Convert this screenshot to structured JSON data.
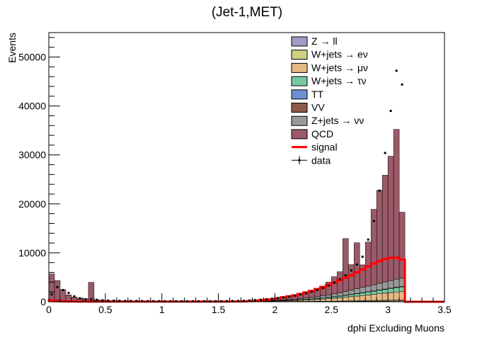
{
  "chart_data": {
    "type": "bar",
    "title": "(Jet-1,MET)",
    "xlabel": "dphi Excluding Muons",
    "ylabel": "Events",
    "xlim": [
      0,
      3.5
    ],
    "ylim": [
      0,
      55000
    ],
    "x_ticks": [
      "0",
      "0.5",
      "1",
      "1.5",
      "2",
      "2.5",
      "3",
      "3.5"
    ],
    "y_ticks": [
      "0",
      "10000",
      "20000",
      "30000",
      "40000",
      "50000"
    ],
    "bin_width": 0.05,
    "legend_position": "top-right",
    "legend": [
      {
        "label": "Z → ll",
        "kind": "fill",
        "color": "#a09cc7"
      },
      {
        "label": "W+jets → eν",
        "kind": "fill",
        "color": "#cfcf86"
      },
      {
        "label": "W+jets → μν",
        "kind": "fill",
        "color": "#e5b985"
      },
      {
        "label": "W+jets → τν",
        "kind": "fill",
        "color": "#78c8a0"
      },
      {
        "label": "TT",
        "kind": "fill",
        "color": "#6f8fd0"
      },
      {
        "label": "VV",
        "kind": "fill",
        "color": "#8b5a4a"
      },
      {
        "label": "Z+jets → νν",
        "kind": "fill",
        "color": "#999999"
      },
      {
        "label": "QCD",
        "kind": "fill",
        "color": "#9a5a68"
      },
      {
        "label": "signal",
        "kind": "line",
        "color": "#ff0000"
      },
      {
        "label": "data",
        "kind": "marker",
        "color": "#000000"
      }
    ],
    "x": [
      0.025,
      0.075,
      0.125,
      0.175,
      0.225,
      0.275,
      0.325,
      0.375,
      0.425,
      0.475,
      0.525,
      0.575,
      0.625,
      0.675,
      0.725,
      0.775,
      0.825,
      0.875,
      0.925,
      0.975,
      1.025,
      1.075,
      1.125,
      1.175,
      1.225,
      1.275,
      1.325,
      1.375,
      1.425,
      1.475,
      1.525,
      1.575,
      1.625,
      1.675,
      1.725,
      1.775,
      1.825,
      1.875,
      1.925,
      1.975,
      2.025,
      2.075,
      2.125,
      2.175,
      2.225,
      2.275,
      2.325,
      2.375,
      2.425,
      2.475,
      2.525,
      2.575,
      2.625,
      2.675,
      2.725,
      2.775,
      2.825,
      2.875,
      2.925,
      2.975,
      3.025,
      3.075,
      3.125
    ],
    "series": [
      {
        "name": "Z → ll",
        "values": [
          60,
          50,
          40,
          30,
          25,
          20,
          18,
          25,
          15,
          10,
          8,
          8,
          8,
          8,
          8,
          8,
          8,
          8,
          8,
          8,
          8,
          8,
          8,
          8,
          8,
          8,
          8,
          8,
          8,
          8,
          8,
          8,
          8,
          10,
          10,
          12,
          14,
          16,
          18,
          20,
          22,
          25,
          28,
          32,
          36,
          40,
          45,
          50,
          55,
          60,
          65,
          70,
          80,
          90,
          100,
          110,
          120,
          130,
          140,
          150,
          160,
          170,
          180
        ]
      },
      {
        "name": "W+jets → eν",
        "values": [
          60,
          50,
          40,
          30,
          25,
          20,
          18,
          25,
          15,
          10,
          8,
          8,
          8,
          8,
          8,
          8,
          8,
          8,
          8,
          8,
          8,
          8,
          8,
          8,
          8,
          8,
          8,
          8,
          8,
          8,
          8,
          8,
          8,
          10,
          10,
          12,
          14,
          16,
          18,
          20,
          22,
          25,
          28,
          32,
          36,
          40,
          45,
          50,
          55,
          60,
          65,
          70,
          80,
          90,
          100,
          110,
          120,
          130,
          140,
          150,
          160,
          170,
          180
        ]
      },
      {
        "name": "W+jets → μν",
        "values": [
          100,
          90,
          70,
          50,
          40,
          30,
          25,
          40,
          20,
          15,
          10,
          10,
          10,
          10,
          10,
          10,
          10,
          10,
          10,
          10,
          10,
          10,
          10,
          10,
          10,
          10,
          10,
          10,
          10,
          10,
          12,
          14,
          16,
          20,
          25,
          30,
          40,
          50,
          65,
          80,
          100,
          120,
          150,
          180,
          220,
          260,
          300,
          350,
          420,
          500,
          580,
          660,
          760,
          860,
          960,
          1060,
          1150,
          1250,
          1350,
          1450,
          1550,
          1650,
          1700
        ]
      },
      {
        "name": "W+jets → τν",
        "values": [
          60,
          50,
          40,
          30,
          25,
          20,
          18,
          25,
          15,
          10,
          8,
          8,
          8,
          8,
          8,
          8,
          8,
          8,
          8,
          8,
          8,
          8,
          8,
          8,
          8,
          8,
          8,
          8,
          8,
          8,
          8,
          10,
          12,
          14,
          16,
          20,
          25,
          30,
          40,
          50,
          60,
          70,
          85,
          100,
          120,
          140,
          160,
          190,
          220,
          250,
          290,
          330,
          380,
          430,
          480,
          540,
          600,
          660,
          720,
          780,
          840,
          900,
          960
        ]
      },
      {
        "name": "TT",
        "values": [
          10,
          10,
          8,
          6,
          5,
          4,
          4,
          5,
          3,
          2,
          2,
          2,
          2,
          2,
          2,
          2,
          2,
          2,
          2,
          2,
          2,
          2,
          2,
          2,
          2,
          2,
          2,
          2,
          2,
          2,
          2,
          2,
          2,
          2,
          3,
          3,
          4,
          4,
          5,
          6,
          6,
          7,
          8,
          9,
          10,
          11,
          12,
          13,
          15,
          16,
          18,
          20,
          22,
          24,
          26,
          28,
          30,
          32,
          34,
          36,
          38,
          40,
          42
        ]
      },
      {
        "name": "VV",
        "values": [
          10,
          10,
          8,
          6,
          5,
          4,
          4,
          5,
          3,
          2,
          2,
          2,
          2,
          2,
          2,
          2,
          2,
          2,
          2,
          2,
          2,
          2,
          2,
          2,
          2,
          2,
          2,
          2,
          2,
          2,
          2,
          2,
          2,
          2,
          3,
          3,
          4,
          4,
          5,
          6,
          6,
          7,
          8,
          9,
          10,
          11,
          12,
          13,
          15,
          16,
          18,
          20,
          22,
          24,
          26,
          28,
          30,
          32,
          34,
          36,
          38,
          40,
          42
        ]
      },
      {
        "name": "Z+jets → νν",
        "values": [
          100,
          80,
          70,
          50,
          40,
          30,
          25,
          40,
          20,
          15,
          10,
          10,
          10,
          10,
          10,
          10,
          10,
          10,
          10,
          10,
          10,
          10,
          10,
          10,
          10,
          10,
          10,
          10,
          10,
          10,
          12,
          14,
          16,
          20,
          25,
          30,
          40,
          50,
          65,
          80,
          100,
          120,
          150,
          180,
          220,
          260,
          300,
          350,
          420,
          500,
          580,
          660,
          760,
          860,
          960,
          1060,
          1150,
          1250,
          1350,
          1450,
          1550,
          1650,
          1700
        ]
      },
      {
        "name": "QCD",
        "values": [
          5300,
          4000,
          2200,
          1200,
          800,
          600,
          500,
          3800,
          300,
          250,
          200,
          180,
          160,
          150,
          140,
          130,
          120,
          110,
          100,
          100,
          90,
          90,
          80,
          80,
          80,
          80,
          80,
          80,
          80,
          80,
          80,
          90,
          100,
          120,
          150,
          200,
          250,
          300,
          350,
          400,
          500,
          600,
          700,
          850,
          1000,
          1200,
          1400,
          1700,
          2000,
          2600,
          3500,
          4300,
          10800,
          5200,
          9400,
          4600,
          9000,
          15400,
          19000,
          21800,
          25400,
          30600,
          13500
        ]
      },
      {
        "name": "signal",
        "values": [
          300,
          100,
          80,
          60,
          50,
          40,
          30,
          30,
          30,
          30,
          30,
          30,
          30,
          30,
          30,
          30,
          30,
          30,
          30,
          30,
          30,
          30,
          30,
          30,
          30,
          30,
          30,
          30,
          30,
          30,
          30,
          40,
          50,
          60,
          80,
          120,
          200,
          300,
          400,
          500,
          700,
          900,
          1100,
          1300,
          1600,
          1900,
          2200,
          2600,
          3000,
          3400,
          3900,
          4400,
          4900,
          5400,
          6000,
          6600,
          7200,
          7800,
          8300,
          8700,
          9000,
          9000,
          8600
        ]
      },
      {
        "name": "data",
        "values": [
          1500,
          3000,
          2400,
          1800,
          1100,
          700,
          500,
          500,
          400,
          300,
          250,
          220,
          200,
          180,
          160,
          150,
          140,
          130,
          120,
          110,
          100,
          100,
          100,
          100,
          100,
          100,
          100,
          100,
          100,
          100,
          100,
          120,
          140,
          160,
          200,
          250,
          320,
          400,
          500,
          600,
          750,
          900,
          1050,
          1250,
          1500,
          1750,
          2050,
          2400,
          2800,
          3300,
          3900,
          4600,
          5400,
          6400,
          7600,
          9200,
          12700,
          16500,
          22700,
          30400,
          39000,
          47200,
          44400
        ]
      }
    ]
  }
}
